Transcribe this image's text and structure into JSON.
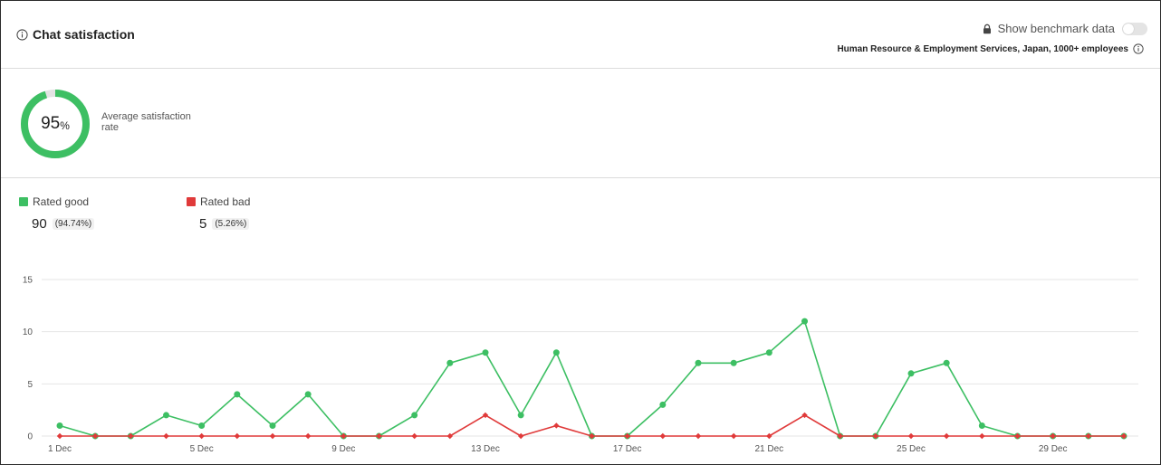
{
  "header": {
    "title": "Chat satisfaction",
    "benchmark_label": "Show benchmark data",
    "benchmark_enabled": false,
    "segment": "Human Resource & Employment Services, Japan, 1000+ employees"
  },
  "summary": {
    "rate_value": "95",
    "rate_unit": "%",
    "rate_fraction": 0.95,
    "rate_label": "Average satisfaction rate"
  },
  "legend": {
    "good": {
      "label": "Rated good",
      "count": "90",
      "share": "(94.74%)"
    },
    "bad": {
      "label": "Rated bad",
      "count": "5",
      "share": "(5.26%)"
    }
  },
  "colors": {
    "good": "#3dbf63",
    "bad": "#e03a3a",
    "donut_track": "#e3e3e3",
    "grid": "#e6e6e6"
  },
  "icons": {
    "info": "info-circle-icon",
    "lock": "lock-icon"
  },
  "chart_data": {
    "type": "line",
    "x": [
      "1 Dec",
      "2 Dec",
      "3 Dec",
      "4 Dec",
      "5 Dec",
      "6 Dec",
      "7 Dec",
      "8 Dec",
      "9 Dec",
      "10 Dec",
      "11 Dec",
      "12 Dec",
      "13 Dec",
      "14 Dec",
      "15 Dec",
      "16 Dec",
      "17 Dec",
      "18 Dec",
      "19 Dec",
      "20 Dec",
      "21 Dec",
      "22 Dec",
      "23 Dec",
      "24 Dec",
      "25 Dec",
      "26 Dec",
      "27 Dec",
      "28 Dec",
      "29 Dec",
      "30 Dec",
      "31 Dec"
    ],
    "x_tick_labels": [
      "1 Dec",
      "5 Dec",
      "9 Dec",
      "13 Dec",
      "17 Dec",
      "21 Dec",
      "25 Dec",
      "29 Dec"
    ],
    "series": [
      {
        "name": "Rated good",
        "values": [
          1,
          0,
          0,
          2,
          1,
          4,
          1,
          4,
          0,
          0,
          2,
          7,
          8,
          2,
          8,
          0,
          0,
          3,
          7,
          7,
          8,
          11,
          0,
          0,
          6,
          7,
          1,
          0,
          0,
          0,
          0
        ]
      },
      {
        "name": "Rated bad",
        "values": [
          0,
          0,
          0,
          0,
          0,
          0,
          0,
          0,
          0,
          0,
          0,
          0,
          2,
          0,
          1,
          0,
          0,
          0,
          0,
          0,
          0,
          2,
          0,
          0,
          0,
          0,
          0,
          0,
          0,
          0,
          0
        ]
      }
    ],
    "y_ticks": [
      "15",
      "10",
      "5",
      "0"
    ],
    "ylim": [
      0,
      15
    ],
    "grid": true,
    "title": "",
    "xlabel": "",
    "ylabel": ""
  }
}
